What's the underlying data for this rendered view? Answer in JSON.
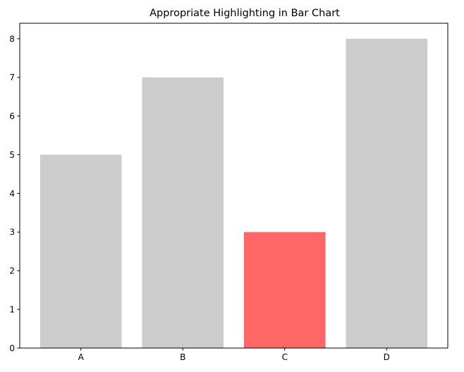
{
  "chart_data": {
    "type": "bar",
    "title": "Appropriate Highlighting in Bar Chart",
    "xlabel": "",
    "ylabel": "",
    "categories": [
      "A",
      "B",
      "C",
      "D"
    ],
    "values": [
      5,
      7,
      3,
      8
    ],
    "ylim": [
      0,
      8.4
    ],
    "yticks": [
      0,
      1,
      2,
      3,
      4,
      5,
      6,
      7,
      8
    ],
    "highlight_category": "C",
    "grid": false,
    "legend": "none",
    "colors": {
      "default_bar": "#cccccc",
      "highlight_bar": "#ff6666",
      "axis": "#000000"
    }
  }
}
